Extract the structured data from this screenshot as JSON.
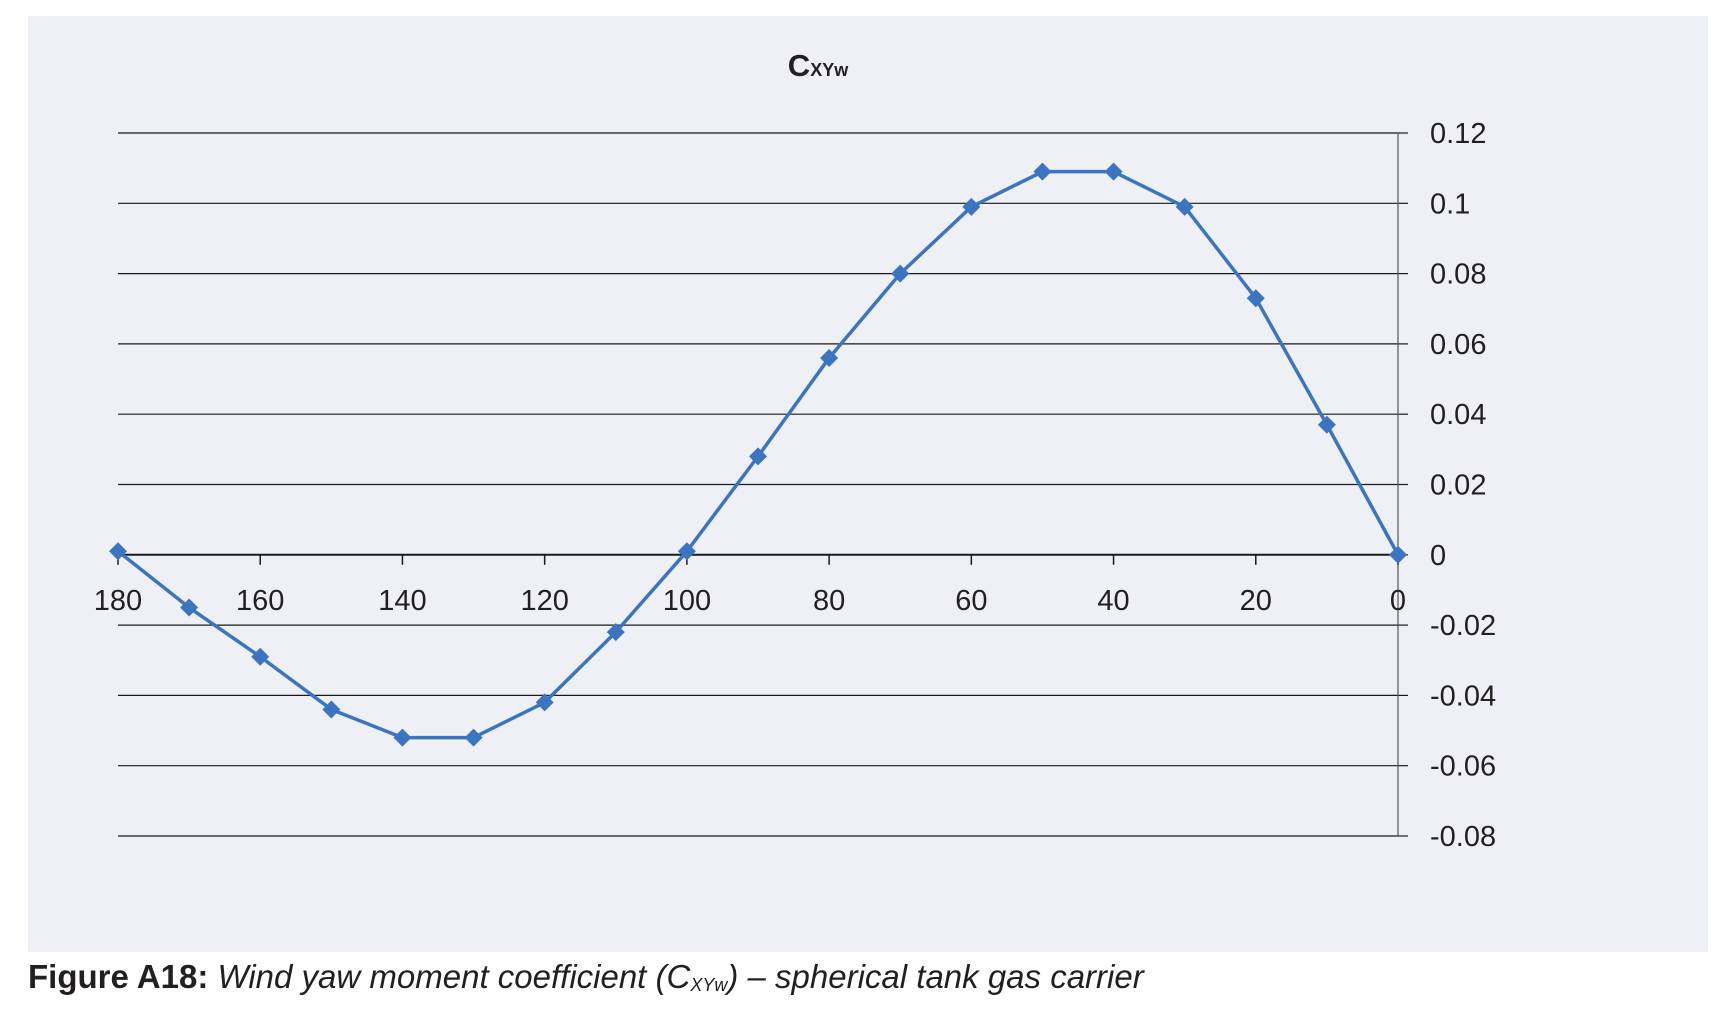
{
  "chart_data": {
    "type": "line",
    "title": "C",
    "title_subscript": "XYw",
    "xlabel": "",
    "ylabel": "",
    "x": [
      180,
      170,
      160,
      150,
      140,
      130,
      120,
      110,
      100,
      90,
      80,
      70,
      60,
      50,
      40,
      30,
      20,
      10,
      0
    ],
    "values": [
      0.001,
      -0.015,
      -0.029,
      -0.044,
      -0.052,
      -0.052,
      -0.042,
      -0.022,
      0.001,
      0.028,
      0.056,
      0.08,
      0.099,
      0.109,
      0.109,
      0.099,
      0.073,
      0.037,
      0.0
    ],
    "xlim": [
      180,
      0
    ],
    "ylim": [
      -0.08,
      0.12
    ],
    "x_ticks": [
      "180",
      "160",
      "140",
      "120",
      "100",
      "80",
      "60",
      "40",
      "20",
      "0"
    ],
    "y_ticks": [
      "0.12",
      "0.1",
      "0.08",
      "0.06",
      "0.04",
      "0.02",
      "0",
      "-0.02",
      "-0.04",
      "-0.06",
      "-0.08"
    ],
    "x_axis_reversed": true,
    "y_axis_position": "right",
    "grid": true,
    "legend": "none",
    "colors": {
      "series": "#3b74c0",
      "background": "#eef0f6",
      "grid": "#1a1a1a"
    }
  },
  "caption": {
    "figure_label": "Figure A18:",
    "text_before": "Wind yaw moment coefficient (C",
    "text_subscript": "XYw",
    "text_after": ") – spherical tank gas carrier"
  }
}
